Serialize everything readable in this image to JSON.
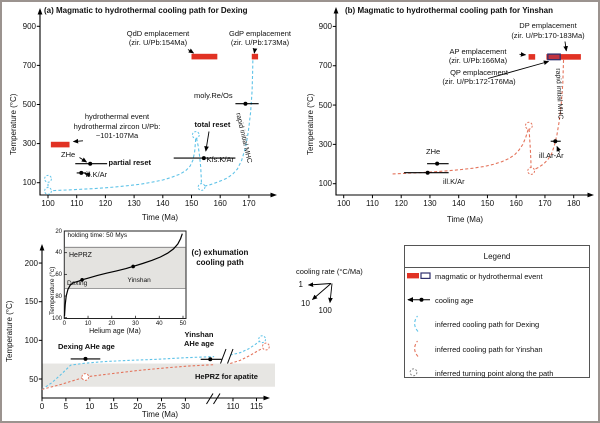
{
  "colors": {
    "event_red": "#e13224",
    "dexing_blue": "#5fc3e8",
    "yinshan_red": "#e4745c",
    "qp_fill": "#c03240",
    "qp_outline": "#30306e",
    "band_gray": "#e7e6e3",
    "axis_black": "#000000",
    "turning_gray": "#888888"
  },
  "chart_data": {
    "panel_a": {
      "type": "line",
      "title": "(a) Magmatic to hydrothermal cooling path for Dexing",
      "xlabel": "Time  (Ma)",
      "ylabel": "Temperature (°C)",
      "x_ticks": [
        100,
        110,
        120,
        130,
        140,
        150,
        160,
        170
      ],
      "y_ticks": [
        100,
        300,
        500,
        700,
        900
      ],
      "xlim": [
        100,
        175
      ],
      "ylim": [
        50,
        950
      ],
      "cooling_path_name": "inferred cooling path for Dexing",
      "cooling_path": [
        [
          100,
          58
        ],
        [
          104,
          61
        ],
        [
          108,
          63.5
        ],
        [
          112,
          66.5
        ],
        [
          116,
          70
        ],
        [
          120,
          74
        ],
        [
          124,
          79
        ],
        [
          128,
          85
        ],
        [
          132,
          92
        ],
        [
          136,
          102
        ],
        [
          140,
          114
        ],
        [
          143,
          127
        ],
        [
          146,
          144
        ],
        [
          148,
          162
        ],
        [
          149.5,
          185
        ],
        [
          150.5,
          215
        ],
        [
          151.1,
          260
        ],
        [
          151.4,
          310
        ],
        [
          151.5,
          344
        ],
        [
          151.7,
          330
        ],
        [
          152.3,
          290
        ],
        [
          152.8,
          240
        ],
        [
          153.2,
          180
        ],
        [
          153.4,
          120
        ],
        [
          153.5,
          78
        ],
        [
          154.5,
          82
        ],
        [
          156.5,
          90
        ],
        [
          158.5,
          100
        ],
        [
          160.5,
          111
        ],
        [
          162.5,
          124
        ],
        [
          164.5,
          146
        ],
        [
          166,
          170
        ],
        [
          167.5,
          215
        ],
        [
          168.8,
          280
        ],
        [
          169.8,
          360
        ],
        [
          170.6,
          460
        ],
        [
          171.1,
          570
        ],
        [
          171.3,
          660
        ],
        [
          171.4,
          740
        ]
      ],
      "end_reheat_segment": [
        [
          100,
          58
        ],
        [
          100,
          120
        ]
      ],
      "turning_points": [
        [
          100,
          120
        ],
        [
          100,
          58
        ],
        [
          151.5,
          344
        ],
        [
          153.5,
          78
        ]
      ],
      "events": [
        {
          "name": "QdD",
          "label1": "QdD emplacement",
          "label2": "(zir. U/Pb:154Ma)",
          "Ma1": 150,
          "Ma2": 159,
          "T": 745
        },
        {
          "name": "GdP",
          "label1": "GdP emplacement",
          "label2": "(zir. U/Pb:173Ma)",
          "Ma1": 171,
          "Ma2": 173.2,
          "T": 745
        },
        {
          "name": "hydrothermal",
          "label1": "hydrothermal event",
          "label2": "hydrothermal zircon U/Pb:",
          "label3": "~101-107Ma",
          "Ma1": 101,
          "Ma2": 107.5,
          "T": 295
        }
      ],
      "ages": [
        {
          "label": "ZHe",
          "Ma": 114.7,
          "T": 197,
          "err": [
            109.5,
            120.6
          ]
        },
        {
          "label": "ill.K/Ar",
          "Ma": 111.6,
          "T": 150,
          "err": [
            110,
            113.3
          ]
        },
        {
          "label": "Kfs.K/Ar",
          "Ma": 154.3,
          "T": 226,
          "err": [
            143.8,
            165.3
          ]
        },
        {
          "label": "moly.Re/Os",
          "Ma": 168.8,
          "T": 504,
          "err": [
            165.3,
            173.4
          ]
        }
      ],
      "labels": {
        "total_reset": "total reset",
        "partial_reset": "partial reset",
        "rapid_mhc": "rapid initial MHC"
      }
    },
    "panel_b": {
      "type": "line",
      "title": "(b) Magmatic to hydrothermal cooling path for Yinshan",
      "xlabel": "Time  (Ma)",
      "ylabel": "Temperature (°C)",
      "x_ticks": [
        100,
        110,
        120,
        130,
        140,
        150,
        160,
        170,
        180
      ],
      "y_ticks": [
        100,
        300,
        500,
        700,
        900
      ],
      "xlim": [
        100,
        185
      ],
      "ylim": [
        50,
        950
      ],
      "cooling_path_name": "inferred cooling path for Yinshan",
      "cooling_path": [
        [
          117,
          150
        ],
        [
          121,
          152.5
        ],
        [
          125,
          155
        ],
        [
          129,
          158
        ],
        [
          133,
          162
        ],
        [
          137,
          166.5
        ],
        [
          141,
          172
        ],
        [
          145,
          179
        ],
        [
          149,
          188
        ],
        [
          152,
          198
        ],
        [
          155,
          212
        ],
        [
          157.5,
          228
        ],
        [
          159.5,
          248
        ],
        [
          161,
          272
        ],
        [
          162.3,
          300
        ],
        [
          163.3,
          335
        ],
        [
          164,
          368
        ],
        [
          164.4,
          395
        ],
        [
          164.6,
          350
        ],
        [
          164.9,
          280
        ],
        [
          165.1,
          215
        ],
        [
          165.2,
          165
        ],
        [
          166.3,
          172
        ],
        [
          167.8,
          183
        ],
        [
          169.5,
          200
        ],
        [
          171,
          222
        ],
        [
          172.3,
          252
        ],
        [
          173.3,
          295
        ],
        [
          174.2,
          350
        ],
        [
          175,
          420
        ],
        [
          175.7,
          510
        ],
        [
          176.2,
          610
        ],
        [
          176.5,
          740
        ]
      ],
      "turning_points": [
        [
          164.4,
          395
        ],
        [
          165.2,
          165
        ]
      ],
      "events": [
        {
          "name": "DP",
          "label1": "DP emplacement",
          "label2": "(zir. U/Pb:170-183Ma)",
          "Ma1": 170.5,
          "Ma2": 182.5,
          "T": 745
        },
        {
          "name": "AP",
          "label1": "AP emplacement",
          "label2": "(zir. U/Pb:166Ma)",
          "Ma1": 164.3,
          "Ma2": 166.6,
          "T": 745
        },
        {
          "name": "QP",
          "label1": "QP emplacement",
          "label2": "(zir. U/Pb:172-176Ma)",
          "Ma1": 171,
          "Ma2": 175.3,
          "T": 745,
          "outlined": true
        }
      ],
      "ages": [
        {
          "label": "ZHe",
          "Ma": 132.5,
          "T": 202,
          "err": [
            129,
            136.5
          ]
        },
        {
          "label": "ill.K/Ar",
          "Ma": 129.2,
          "T": 156,
          "err": [
            121,
            136.5
          ]
        },
        {
          "label": "ill.Ar-Ar",
          "Ma": 173.6,
          "T": 316,
          "err": [
            172,
            175.5
          ]
        }
      ],
      "labels": {
        "rapid_mhc": "rapid initial MHC"
      }
    },
    "panel_c": {
      "type": "line",
      "title_line1": "(c) exhumation",
      "title_line2": "cooling path",
      "xlabel": "Time  (Ma)",
      "ylabel": "Temperature (°C)",
      "x_ticks_main": [
        0,
        5,
        10,
        15,
        20,
        25,
        30
      ],
      "x_ticks_after_break": [
        110,
        115
      ],
      "y_ticks": [
        50,
        100,
        150,
        200
      ],
      "heprz_band": {
        "label": "HePRZ for apatite",
        "T_range": [
          40,
          70
        ]
      },
      "dexing": {
        "pre_break": [
          [
            0,
            36.5
          ],
          [
            2,
            45
          ],
          [
            4,
            56
          ],
          [
            6,
            68
          ],
          [
            9,
            70.5
          ],
          [
            13,
            72.5
          ],
          [
            18,
            74
          ],
          [
            24,
            75.5
          ],
          [
            30,
            77.5
          ],
          [
            36,
            79
          ]
        ],
        "post_break": [
          [
            109.4,
            81
          ],
          [
            111.5,
            84
          ],
          [
            113.3,
            89
          ],
          [
            114.8,
            95
          ],
          [
            116.2,
            101.5
          ]
        ],
        "end_circle": [
          116.2,
          101.5
        ]
      },
      "yinshan": {
        "pre_break": [
          [
            0,
            36.5
          ],
          [
            4,
            43
          ],
          [
            9,
            52.6
          ],
          [
            14,
            56.5
          ],
          [
            20,
            61
          ],
          [
            26,
            64.5
          ],
          [
            31,
            67
          ],
          [
            36,
            68.5
          ]
        ],
        "post_break": [
          [
            109.4,
            70
          ],
          [
            111.5,
            74
          ],
          [
            113.5,
            80
          ],
          [
            115.3,
            86.5
          ],
          [
            117,
            92
          ]
        ],
        "mid_circle": [
          9.06,
          52.6
        ],
        "end_circle": [
          117,
          92
        ]
      },
      "ages": [
        {
          "label": "Dexing AHe age",
          "Ma": 9.1,
          "T": 76,
          "err": [
            6,
            12.2
          ]
        },
        {
          "label1": "Yinshan",
          "label2": "AHe age",
          "Ma": 35.2,
          "T": 75.5,
          "err": [
            33.2,
            37.6
          ]
        }
      ],
      "inset": {
        "note": "holding time: 50 Mys",
        "xlabel": "Helium age (Ma)",
        "ylabel": "Temperature (°c)",
        "x_ticks": [
          0,
          10,
          20,
          30,
          40,
          50
        ],
        "y_ticks": [
          20,
          40,
          60,
          80,
          100
        ],
        "band_label": "HePRZ",
        "band_T": [
          35,
          73
        ],
        "curve": [
          [
            0.1,
            98.5
          ],
          [
            0.4,
            88
          ],
          [
            0.8,
            80
          ],
          [
            1.5,
            74
          ],
          [
            2.5,
            70
          ],
          [
            4,
            67.5
          ],
          [
            6,
            66.3
          ],
          [
            7.5,
            65
          ],
          [
            10,
            63.5
          ],
          [
            14,
            61
          ],
          [
            18,
            58.8
          ],
          [
            22,
            56.8
          ],
          [
            26,
            54.7
          ],
          [
            29,
            52.7
          ],
          [
            33,
            50
          ],
          [
            37,
            47
          ],
          [
            40.5,
            44
          ],
          [
            43.5,
            40.5
          ],
          [
            46,
            36.5
          ],
          [
            47.8,
            32
          ],
          [
            49,
            27
          ],
          [
            49.7,
            22.5
          ]
        ],
        "points": [
          {
            "label": "Dexing",
            "age": 7.5,
            "T": 65
          },
          {
            "label": "Yinshan",
            "age": 29,
            "T": 52.7
          }
        ]
      }
    },
    "legend": {
      "title": "Legend",
      "items": [
        "magmatic or hydrothermal event",
        "cooling age",
        "inferred cooling path for Dexing",
        "inferred cooling path for Yinshan",
        "inferred turning point along the path"
      ]
    },
    "cooling_rate": {
      "label": "cooling rate (°C/Ma)",
      "rates": [
        "1",
        "10",
        "100"
      ]
    }
  }
}
